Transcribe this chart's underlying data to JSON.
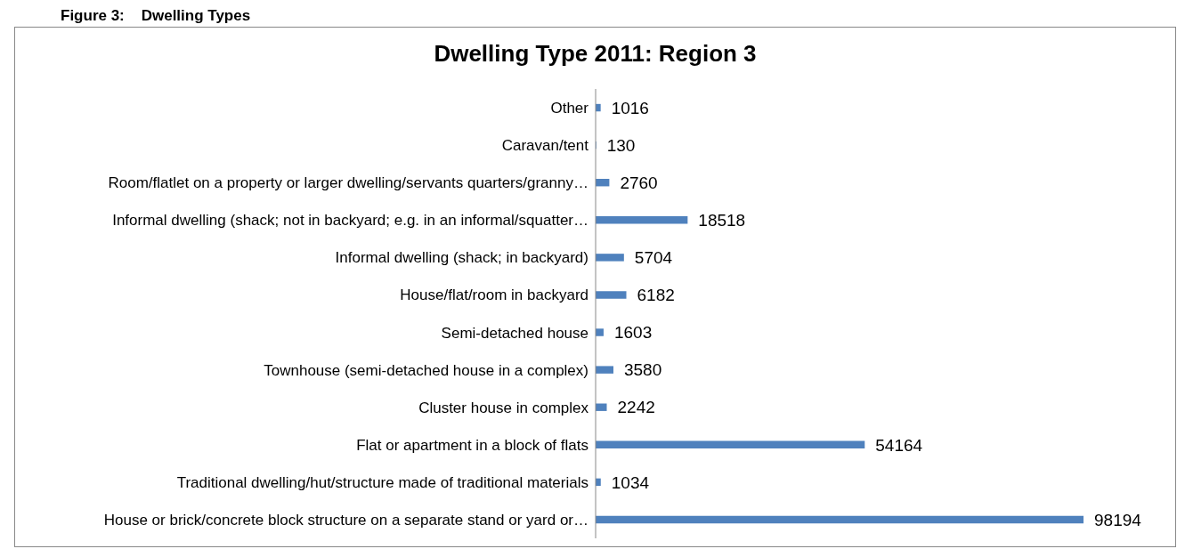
{
  "chart_data": {
    "type": "bar",
    "orientation": "horizontal",
    "title": "Dwelling Type 2011: Region 3",
    "annotations": [
      "Figure 3:    Dwelling Types"
    ],
    "categories": [
      "Other",
      "Caravan/tent",
      "Room/flatlet on a property or larger dwelling/servants quarters/granny…",
      "Informal dwelling (shack; not in backyard; e.g. in an informal/squatter…",
      "Informal dwelling (shack; in backyard)",
      "House/flat/room in backyard",
      "Semi-detached house",
      "Townhouse (semi-detached house in a complex)",
      "Cluster house in complex",
      "Flat or apartment in a block of flats",
      "Traditional dwelling/hut/structure made of traditional materials",
      "House or brick/concrete block structure on a separate stand or yard or…"
    ],
    "values": [
      1016,
      130,
      2760,
      18518,
      5704,
      6182,
      1603,
      3580,
      2242,
      54164,
      1034,
      98194
    ],
    "color": "#4f81bd",
    "data_labels": true,
    "grid": false,
    "legend": false
  }
}
